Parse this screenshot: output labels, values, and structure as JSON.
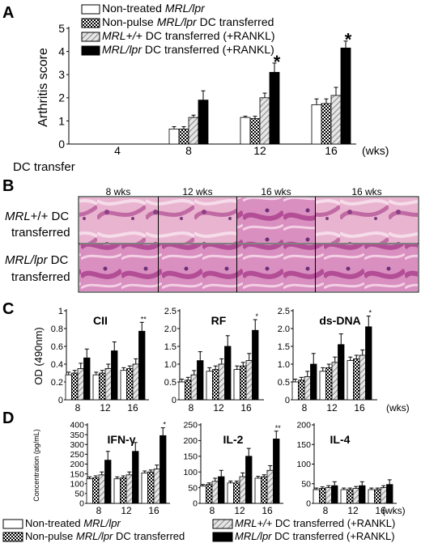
{
  "panels": {
    "A": "A",
    "B": "B",
    "C": "C",
    "D": "D"
  },
  "colors": {
    "nontreated": "#ffffff",
    "nonpulse": "checker",
    "wt_dc": "hatch-gray",
    "lpr_dc": "#000000"
  },
  "legend_top": [
    {
      "pre": "Non-treated ",
      "it": "MRL/lpr",
      "post": "",
      "style": "white"
    },
    {
      "pre": "Non-pulse ",
      "it": "MRL/lpr",
      "post": " DC transferred",
      "style": "checker"
    },
    {
      "pre": "",
      "it": "MRL+/+",
      "post": " DC transferred (+RANKL)",
      "style": "hatch"
    },
    {
      "pre": "",
      "it": "MRL/lpr",
      "post": "  DC transferred (+RANKL)",
      "style": "black"
    }
  ],
  "legend_bottom": [
    {
      "pre": "Non-treated ",
      "it": "MRL/lpr",
      "post": "",
      "style": "white"
    },
    {
      "pre": "Non-pulse ",
      "it": "MRL/lpr",
      "post": " DC transferred",
      "style": "checker"
    },
    {
      "pre": "",
      "it": "MRL+/+",
      "post": " DC transferred (+RANKL)",
      "style": "hatch"
    },
    {
      "pre": "",
      "it": "MRL/lpr",
      "post": "  DC transferred (+RANKL)",
      "style": "black"
    }
  ],
  "histology": {
    "col_labels": [
      "8 wks",
      "12 wks",
      "16 wks",
      "16 wks"
    ],
    "row_labels": [
      {
        "line1_it": "MRL",
        "line1_rest": "+/+ DC",
        "line2": "transferred"
      },
      {
        "line1_it": "MRL/lpr",
        "line1_rest": " DC",
        "line2": "transferred"
      }
    ]
  },
  "chart_data": [
    {
      "id": "arthritis",
      "type": "bar",
      "title": "",
      "ylabel": "Arthritis score",
      "xlabel": "DC transfer",
      "x_unit": "(wks)",
      "categories": [
        "4",
        "8",
        "12",
        "16"
      ],
      "ylim": [
        0,
        5
      ],
      "yticks": [
        "0",
        "1",
        "2",
        "3",
        "4",
        "5"
      ],
      "series": [
        {
          "values": [
            0,
            0.65,
            1.15,
            1.7
          ],
          "errors": [
            0,
            0.1,
            0.05,
            0.25
          ]
        },
        {
          "values": [
            0,
            0.65,
            1.1,
            1.75
          ],
          "errors": [
            0,
            0.1,
            0.1,
            0.2
          ]
        },
        {
          "values": [
            0,
            1.15,
            2.0,
            2.1
          ],
          "errors": [
            0,
            0.1,
            0.2,
            0.35
          ]
        },
        {
          "values": [
            0,
            1.9,
            3.1,
            4.15
          ],
          "errors": [
            0,
            0.4,
            0.4,
            0.3
          ]
        }
      ],
      "star_labels": [
        "*",
        "*"
      ]
    },
    {
      "id": "cii",
      "type": "bar",
      "title": "CII",
      "ylabel": "OD (490nm)",
      "categories": [
        "8",
        "12",
        "16"
      ],
      "ylim": [
        0,
        1.0
      ],
      "yticks": [
        "0",
        "0.2",
        "0.4",
        "0.6",
        "0.8",
        "1"
      ],
      "series": [
        {
          "values": [
            0.28,
            0.28,
            0.33
          ],
          "errors": [
            0.03,
            0.03,
            0.03
          ]
        },
        {
          "values": [
            0.3,
            0.3,
            0.35
          ],
          "errors": [
            0.03,
            0.03,
            0.03
          ]
        },
        {
          "values": [
            0.35,
            0.35,
            0.4
          ],
          "errors": [
            0.06,
            0.05,
            0.06
          ]
        },
        {
          "values": [
            0.47,
            0.55,
            0.77
          ],
          "errors": [
            0.1,
            0.1,
            0.1
          ]
        }
      ],
      "sig": "**"
    },
    {
      "id": "rf",
      "type": "bar",
      "title": "RF",
      "categories": [
        "8",
        "12",
        "16"
      ],
      "ylim": [
        0,
        2.5
      ],
      "yticks": [
        "0",
        "0.5",
        "1.0",
        "1.5",
        "2.0",
        "2.5"
      ],
      "series": [
        {
          "values": [
            0.5,
            0.8,
            0.85
          ],
          "errors": [
            0.08,
            0.1,
            0.1
          ]
        },
        {
          "values": [
            0.55,
            0.85,
            0.95
          ],
          "errors": [
            0.08,
            0.1,
            0.1
          ]
        },
        {
          "values": [
            0.7,
            1.0,
            1.1
          ],
          "errors": [
            0.12,
            0.15,
            0.2
          ]
        },
        {
          "values": [
            1.1,
            1.5,
            1.95
          ],
          "errors": [
            0.25,
            0.3,
            0.3
          ]
        }
      ],
      "sig": "*"
    },
    {
      "id": "dsdna",
      "type": "bar",
      "title": "ds-DNA",
      "categories": [
        "8",
        "12",
        "16"
      ],
      "ylim": [
        0,
        2.5
      ],
      "yticks": [
        "0",
        "0.5",
        "1.0",
        "1.5",
        "2.0",
        "2.5"
      ],
      "series": [
        {
          "values": [
            0.5,
            0.8,
            1.1
          ],
          "errors": [
            0.08,
            0.1,
            0.1
          ]
        },
        {
          "values": [
            0.55,
            0.9,
            1.15
          ],
          "errors": [
            0.08,
            0.1,
            0.1
          ]
        },
        {
          "values": [
            0.65,
            1.05,
            1.25
          ],
          "errors": [
            0.15,
            0.15,
            0.15
          ]
        },
        {
          "values": [
            1.0,
            1.55,
            2.05
          ],
          "errors": [
            0.3,
            0.3,
            0.3
          ]
        }
      ],
      "sig": "*"
    },
    {
      "id": "ifng",
      "type": "bar",
      "title": "IFN-γ",
      "ylabel": "Concentration (pg/mL)",
      "categories": [
        "8",
        "12",
        "16"
      ],
      "ylim": [
        0,
        400
      ],
      "yticks": [
        "0",
        "50",
        "100",
        "150",
        "200",
        "250",
        "300",
        "350",
        "400"
      ],
      "series": [
        {
          "values": [
            125,
            125,
            155
          ],
          "errors": [
            10,
            10,
            10
          ]
        },
        {
          "values": [
            130,
            130,
            160
          ],
          "errors": [
            10,
            10,
            10
          ]
        },
        {
          "values": [
            145,
            145,
            175
          ],
          "errors": [
            15,
            15,
            20
          ]
        },
        {
          "values": [
            220,
            265,
            345
          ],
          "errors": [
            45,
            45,
            40
          ]
        }
      ],
      "sig": "*"
    },
    {
      "id": "il2",
      "type": "bar",
      "title": "IL-2",
      "categories": [
        "8",
        "12",
        "16"
      ],
      "ylim": [
        0,
        250
      ],
      "yticks": [
        "0",
        "50",
        "100",
        "150",
        "200",
        "250"
      ],
      "series": [
        {
          "values": [
            55,
            65,
            80
          ],
          "errors": [
            5,
            6,
            6
          ]
        },
        {
          "values": [
            60,
            65,
            85
          ],
          "errors": [
            5,
            6,
            6
          ]
        },
        {
          "values": [
            70,
            85,
            105
          ],
          "errors": [
            10,
            12,
            15
          ]
        },
        {
          "values": [
            85,
            150,
            205
          ],
          "errors": [
            20,
            25,
            25
          ]
        }
      ],
      "sig": "**"
    },
    {
      "id": "il4",
      "type": "bar",
      "title": "IL-4",
      "categories": [
        "8",
        "12",
        "16"
      ],
      "ylim": [
        0,
        200
      ],
      "yticks": [
        "0",
        "50",
        "100",
        "150",
        "200"
      ],
      "x_unit": "(wks)",
      "series": [
        {
          "values": [
            35,
            35,
            35
          ],
          "errors": [
            4,
            4,
            4
          ]
        },
        {
          "values": [
            38,
            35,
            35
          ],
          "errors": [
            4,
            4,
            4
          ]
        },
        {
          "values": [
            40,
            38,
            40
          ],
          "errors": [
            5,
            5,
            5
          ]
        },
        {
          "values": [
            45,
            45,
            48
          ],
          "errors": [
            10,
            10,
            12
          ]
        }
      ]
    }
  ]
}
